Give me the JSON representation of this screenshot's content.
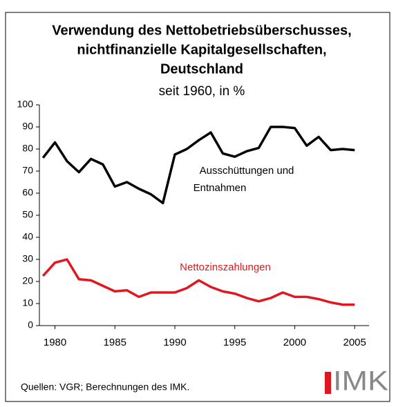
{
  "chart_data": {
    "type": "line",
    "title": [
      "Verwendung des Nettobetriebsüberschusses,",
      "nichtfinanzielle Kapitalgesellschaften,",
      "Deutschland"
    ],
    "subtitle": "seit 1960, in %",
    "x": [
      1979,
      1980,
      1981,
      1982,
      1983,
      1984,
      1985,
      1986,
      1987,
      1988,
      1989,
      1990,
      1991,
      1992,
      1993,
      1994,
      1995,
      1996,
      1997,
      1998,
      1999,
      2000,
      2001,
      2002,
      2003,
      2004,
      2005
    ],
    "series": [
      {
        "name": "Ausschüttungen und Entnahmen",
        "label_lines": [
          "Ausschüttungen und",
          "Entnahmen"
        ],
        "color": "#000000",
        "values": [
          76,
          83,
          74.5,
          69.5,
          75.5,
          73,
          63,
          65,
          62,
          59.5,
          55.5,
          77.5,
          80,
          84,
          87.5,
          78,
          76.5,
          79,
          80.5,
          90,
          90,
          89.5,
          81.5,
          85.5,
          79.5,
          80,
          79.5
        ]
      },
      {
        "name": "Nettozinszahlungen",
        "label_lines": [
          "Nettozinszahlungen"
        ],
        "color": "#e2161e",
        "values": [
          22.5,
          28.5,
          30,
          21,
          20.5,
          18,
          15.5,
          16,
          13,
          15,
          15,
          15,
          17,
          20.5,
          17.5,
          15.5,
          14.5,
          12.5,
          11,
          12.5,
          15,
          13,
          13,
          12,
          10.5,
          9.5,
          9.5
        ]
      }
    ],
    "xlim": [
      1978.7,
      2006.2
    ],
    "xticks": [
      1980,
      1985,
      1990,
      1995,
      2000,
      2005
    ],
    "ylim": [
      0,
      100
    ],
    "yticks": [
      0,
      10,
      20,
      30,
      40,
      50,
      60,
      70,
      80,
      90,
      100
    ],
    "source": "Quellen: VGR; Berechnungen des IMK.",
    "logo": "IMK"
  }
}
